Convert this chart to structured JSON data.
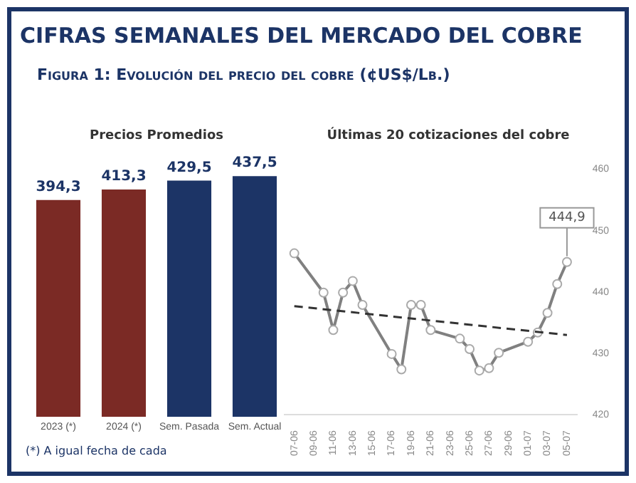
{
  "chart_data": [
    {
      "type": "other",
      "title": "CIFRAS SEMANALES DEL MERCADO DEL COBRE",
      "subtitle": "Figura 1: Evolución del precio del cobre (¢US$/Lb.)"
    },
    {
      "type": "bar",
      "title": "Precios Promedios",
      "categories": [
        "2023 (*)",
        "2024 (*)",
        "Sem. Pasada",
        "Sem. Actual"
      ],
      "values": [
        394.3,
        413.3,
        429.5,
        437.5
      ],
      "colors": [
        "#7b2a25",
        "#7b2a25",
        "#1c3466",
        "#1c3466"
      ],
      "value_labels": [
        "394,3",
        "413,3",
        "429,5",
        "437,5"
      ],
      "tick_labels": "x",
      "grid": false,
      "legend": false,
      "annotations": [
        "(*) A igual fecha de cada"
      ]
    },
    {
      "type": "line",
      "title": "Últimas 20 cotizaciones del cobre",
      "xlim": [
        "--06-06",
        "--07-06"
      ],
      "xticks": [
        {
          "value": "--06-07",
          "label": "07-06"
        },
        {
          "value": "--06-09",
          "label": "09-06"
        },
        {
          "value": "--06-11",
          "label": "11-06"
        },
        {
          "value": "--06-13",
          "label": "13-06"
        },
        {
          "value": "--06-15",
          "label": "15-06"
        },
        {
          "value": "--06-17",
          "label": "17-06"
        },
        {
          "value": "--06-19",
          "label": "19-06"
        },
        {
          "value": "--06-21",
          "label": "21-06"
        },
        {
          "value": "--06-23",
          "label": "23-06"
        },
        {
          "value": "--06-25",
          "label": "25-06"
        },
        {
          "value": "--06-27",
          "label": "27-06"
        },
        {
          "value": "--06-29",
          "label": "29-06"
        },
        {
          "value": "--07-01",
          "label": "01-07"
        },
        {
          "value": "--07-03",
          "label": "03-07"
        },
        {
          "value": "--07-05",
          "label": "05-07"
        }
      ],
      "ylim": [
        420,
        460
      ],
      "yticks": [
        420,
        430,
        440,
        450,
        460
      ],
      "grid": false,
      "legend": false,
      "series": [
        {
          "color": "#808080",
          "marker": "circle",
          "line_style": "solid",
          "x": [
            "--06-07",
            "--06-10",
            "--06-11",
            "--06-12",
            "--06-13",
            "--06-14",
            "--06-17",
            "--06-18",
            "--06-19",
            "--06-20",
            "--06-21",
            "--06-24",
            "--06-25",
            "--06-26",
            "--06-27",
            "--06-28",
            "--07-01",
            "--07-02",
            "--07-03",
            "--07-04",
            "--07-05"
          ],
          "values": [
            446.3,
            439.9,
            433.8,
            439.9,
            441.8,
            437.9,
            429.9,
            427.4,
            437.9,
            437.9,
            433.8,
            432.4,
            430.7,
            427.2,
            427.6,
            430.1,
            431.9,
            433.4,
            436.6,
            441.3,
            444.9
          ],
          "value_labels": [
            null,
            null,
            null,
            null,
            null,
            null,
            null,
            null,
            null,
            null,
            null,
            null,
            null,
            null,
            null,
            null,
            null,
            null,
            null,
            null,
            "444,9"
          ]
        },
        {
          "type": "line",
          "color": "#333333",
          "marker": "none",
          "line_style": "dashed",
          "x": [
            "--06-07",
            "--07-05"
          ],
          "values": [
            437.7,
            433.0
          ]
        }
      ]
    }
  ]
}
